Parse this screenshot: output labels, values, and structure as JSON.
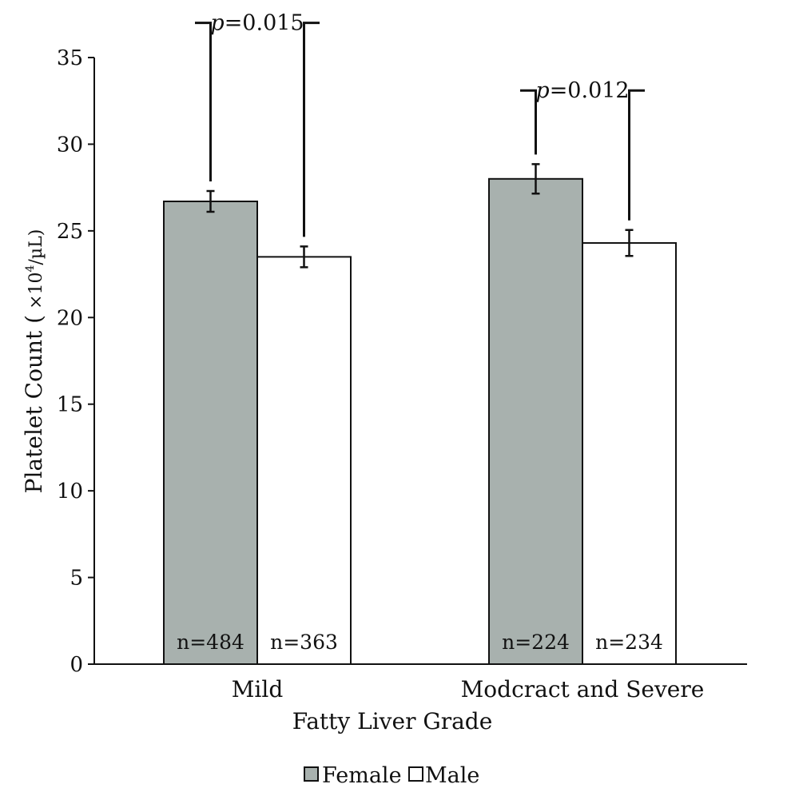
{
  "chart_data": {
    "type": "bar",
    "ylabel_main": "Platelet Count (",
    "ylabel_unit_base": " ×10",
    "ylabel_unit_exp": "4",
    "ylabel_unit_rest": "/µL)",
    "xlabel": "Fatty Liver Grade",
    "ylim": [
      0,
      35
    ],
    "yticks": [
      "0",
      "5",
      "10",
      "15",
      "20",
      "25",
      "30",
      "35"
    ],
    "categories": [
      "Mild",
      "Modcract and Severe"
    ],
    "series": [
      {
        "name": "Female",
        "color": "#a8b1ae",
        "values": [
          26.7,
          28.0
        ],
        "errors": [
          0.6,
          0.85
        ],
        "n_labels": [
          "n=484",
          "n=224"
        ]
      },
      {
        "name": "Male",
        "color": "#ffffff",
        "values": [
          23.5,
          24.3
        ],
        "errors": [
          0.6,
          0.75
        ],
        "n_labels": [
          "n=363",
          "n=234"
        ]
      }
    ],
    "comparisons": [
      {
        "p_italic": "p",
        "p_value": "=0.015",
        "from": [
          0,
          0
        ],
        "to": [
          0,
          1
        ],
        "level": 37.0
      },
      {
        "p_italic": "p",
        "p_value": "=0.012",
        "from": [
          1,
          0
        ],
        "to": [
          1,
          1
        ],
        "level": 33.1
      }
    ],
    "legend_placement": "bottom-center",
    "grid": false
  }
}
